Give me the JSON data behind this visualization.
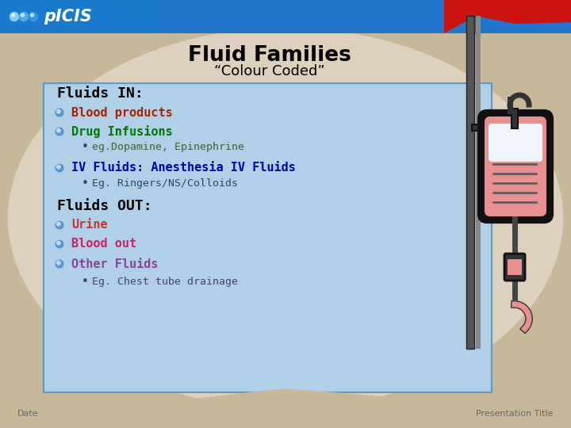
{
  "title_line1": "Fluid Families",
  "title_line2": "“Colour Coded”",
  "title_color": "#000000",
  "bg_outer": "#c8b89a",
  "bg_ellipse": "#ddd0bc",
  "header_blue": "#1a6eb5",
  "header_red": "#cc1111",
  "content_box_bg": "#b0cfe8",
  "content_box_border": "#6699bb",
  "fluids_in_header": "Fluids IN:",
  "fluids_out_header": "Fluids OUT:",
  "items_in": [
    {
      "text": "Blood products",
      "color": "#aa2200",
      "indent": 0,
      "bullet": "#4488cc"
    },
    {
      "text": "Drug Infusions",
      "color": "#007700",
      "indent": 0,
      "bullet": "#4488cc"
    },
    {
      "text": "eg.Dopamine, Epinephrine",
      "color": "#336633",
      "indent": 1,
      "bullet": "#336633"
    },
    {
      "text": "IV Fluids: Anesthesia IV Fluids",
      "color": "#0000aa",
      "indent": 0,
      "bullet": "#4488cc"
    },
    {
      "text": "Eg. Ringers/NS/Colloids",
      "color": "#334466",
      "indent": 1,
      "bullet": "#334466"
    }
  ],
  "items_out": [
    {
      "text": "Urine",
      "color": "#cc3333",
      "indent": 0,
      "bullet": "#4488cc"
    },
    {
      "text": "Blood out",
      "color": "#cc2266",
      "indent": 0,
      "bullet": "#4488cc"
    },
    {
      "text": "Other Fluids",
      "color": "#884499",
      "indent": 0,
      "bullet": "#4488cc"
    },
    {
      "text": "Eg. Chest tube drainage",
      "color": "#444466",
      "indent": 1,
      "bullet": "#444466"
    }
  ],
  "footer_left": "Date",
  "footer_right": "Presentation Title",
  "footer_color": "#666666"
}
